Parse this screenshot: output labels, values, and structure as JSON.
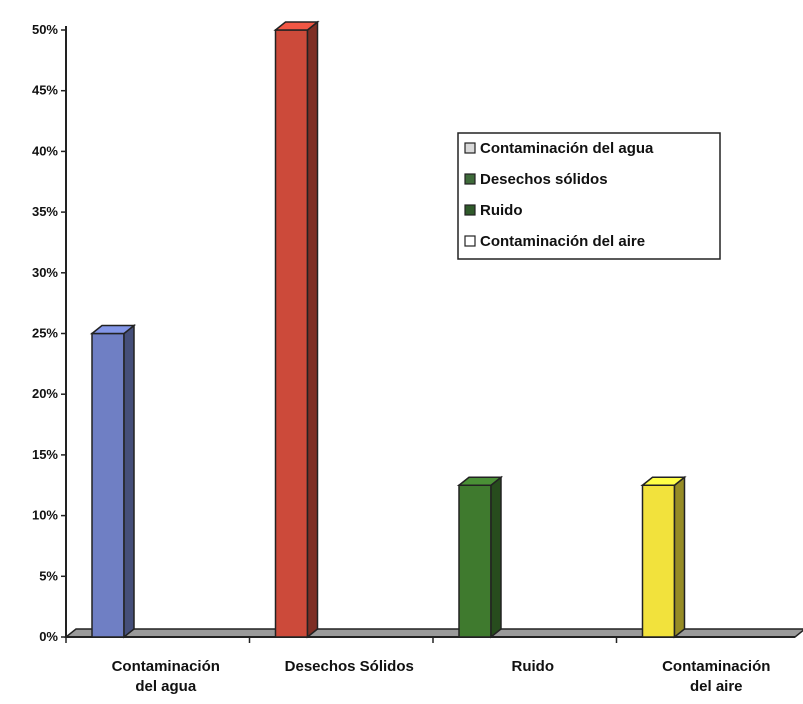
{
  "chart_data": {
    "type": "bar",
    "categories": [
      [
        "Contaminación",
        "del agua"
      ],
      [
        "Desechos Sólidos"
      ],
      [
        "Ruido"
      ],
      [
        "Contaminación",
        "del aire"
      ]
    ],
    "values": [
      25,
      50,
      12.5,
      12.5
    ],
    "colors": [
      "#6f7fc4",
      "#cc4a3a",
      "#3f7a2e",
      "#f2e23c"
    ],
    "ylim": [
      0,
      50
    ],
    "yticks": [
      0,
      5,
      10,
      15,
      20,
      25,
      30,
      35,
      40,
      45,
      50
    ],
    "tick_suffix": "%",
    "grid": false,
    "legend": {
      "placement": "upper-right",
      "entries": [
        {
          "label": "Contaminación del agua",
          "swatch": "#d9d9d9"
        },
        {
          "label": "Desechos sólidos",
          "swatch": "#3f6b3a"
        },
        {
          "label": "Ruido",
          "swatch": "#2f5a2a"
        },
        {
          "label": "Contaminación del aire",
          "swatch": "#ffffff"
        }
      ]
    }
  }
}
